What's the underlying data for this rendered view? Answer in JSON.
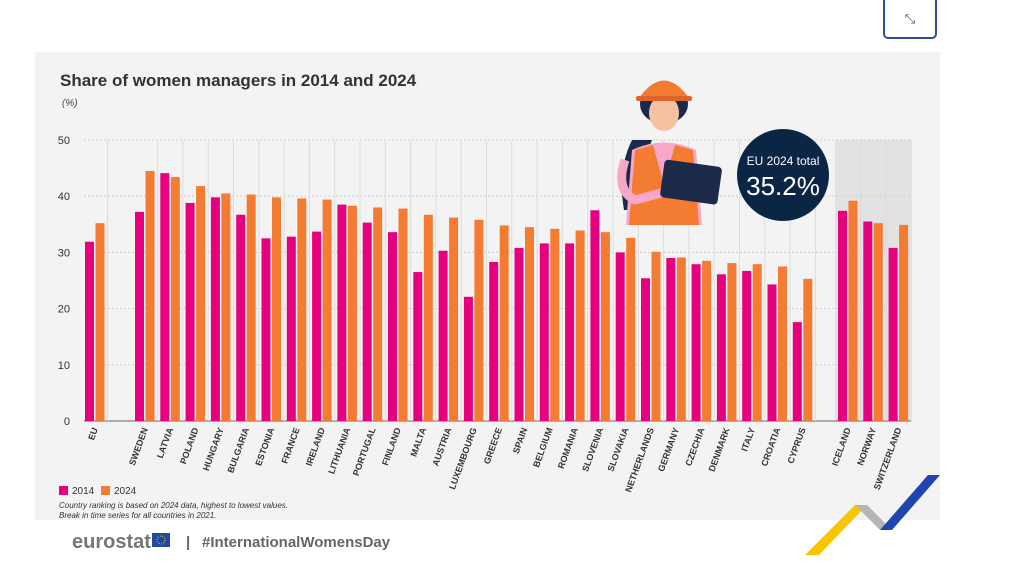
{
  "chart_data": {
    "type": "bar",
    "title": "Share of women managers in 2014 and 2024",
    "ylabel": "(%)",
    "ylim": [
      0,
      50
    ],
    "yticks": [
      0,
      10,
      20,
      30,
      40,
      50
    ],
    "grid": true,
    "legend_position": "bottom-left",
    "categories": [
      "EU",
      "SWEDEN",
      "LATVIA",
      "POLAND",
      "HUNGARY",
      "BULGARIA",
      "ESTONIA",
      "FRANCE",
      "IRELAND",
      "LITHUANIA",
      "PORTUGAL",
      "FINLAND",
      "MALTA",
      "AUSTRIA",
      "LUXEMBOURG",
      "GREECE",
      "SPAIN",
      "BELGIUM",
      "ROMANIA",
      "SLOVENIA",
      "SLOVAKIA",
      "NETHERLANDS",
      "GERMANY",
      "CZECHIA",
      "DENMARK",
      "ITALY",
      "CROATIA",
      "CYPRUS",
      "ICELAND",
      "NORWAY",
      "SWITZERLAND"
    ],
    "series": [
      {
        "name": "2014",
        "color": "#e6007e",
        "values": [
          31.9,
          37.2,
          44.1,
          38.8,
          39.8,
          36.7,
          32.5,
          32.8,
          33.7,
          38.5,
          35.3,
          33.6,
          26.5,
          30.3,
          22.1,
          28.3,
          30.8,
          31.6,
          31.6,
          37.5,
          30.0,
          25.4,
          29.0,
          27.9,
          26.1,
          26.7,
          24.3,
          17.6,
          37.4,
          35.5,
          30.8
        ]
      },
      {
        "name": "2024",
        "color": "#f47b32",
        "values": [
          35.2,
          44.5,
          43.4,
          41.8,
          40.5,
          40.3,
          39.8,
          39.6,
          39.4,
          38.3,
          38.0,
          37.8,
          36.7,
          36.2,
          35.8,
          34.8,
          34.5,
          34.2,
          33.9,
          33.6,
          32.6,
          30.1,
          29.1,
          28.5,
          28.1,
          27.9,
          27.5,
          25.3,
          39.2,
          35.2,
          34.9
        ]
      }
    ],
    "annotation": {
      "label": "EU 2024 total",
      "value": "35.2%",
      "color": "#0b2545"
    },
    "notes": [
      "Country ranking is based on 2024 data, highest to lowest values.",
      "Break in time series for all countries in 2021."
    ]
  },
  "footer": {
    "logo": "eurostat",
    "separator": "|",
    "hashtag": "#InternationalWomensDay"
  },
  "expand_icon": "expand-icon"
}
